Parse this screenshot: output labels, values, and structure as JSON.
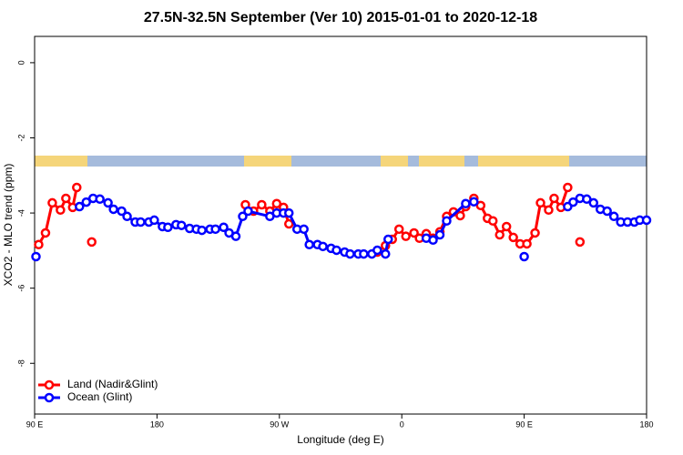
{
  "chart_data": {
    "type": "line",
    "title": "27.5N-32.5N September (Ver 10)   2015-01-01 to 2020-12-18",
    "x_label": "Longitude (deg E)",
    "y_label": "XCO2 - MLO trend (ppm)",
    "xlim": [
      90,
      540
    ],
    "ylim": [
      -9.35,
      0.7
    ],
    "xticks": [
      {
        "value": 90,
        "label": "90 E"
      },
      {
        "value": 180,
        "label": "180"
      },
      {
        "value": 270,
        "label": "90 W"
      },
      {
        "value": 360,
        "label": "0"
      },
      {
        "value": 450,
        "label": "90 E"
      },
      {
        "value": 540,
        "label": "180"
      }
    ],
    "yticks": [
      0,
      -2,
      -4,
      -6,
      -8
    ],
    "legend": "bottom-left",
    "series": [
      {
        "name": "Land (Nadir&Glint)",
        "color": "#ff0000",
        "x": [
          93,
          98,
          103,
          109,
          113,
          118,
          121,
          null,
          132,
          null,
          245,
          251,
          257,
          263,
          268,
          273,
          277,
          null,
          342,
          348,
          353,
          358,
          363,
          369,
          373,
          378,
          383,
          388,
          393,
          398,
          403,
          407,
          413,
          418,
          423,
          427,
          432,
          437,
          442,
          447,
          452,
          458,
          462,
          468,
          472,
          477,
          482,
          null,
          491
        ],
        "values": [
          -4.84,
          -4.53,
          -3.73,
          -3.92,
          -3.61,
          -3.85,
          -3.32,
          null,
          -4.77,
          null,
          -3.78,
          -3.95,
          -3.78,
          -3.95,
          -3.75,
          -3.85,
          -4.29,
          null,
          -5.04,
          -4.87,
          -4.7,
          -4.43,
          -4.62,
          -4.53,
          -4.67,
          -4.55,
          -4.67,
          -4.5,
          -4.09,
          -3.97,
          -4.07,
          -3.83,
          -3.61,
          -3.8,
          -4.14,
          -4.21,
          -4.58,
          -4.36,
          -4.65,
          -4.82,
          -4.82,
          -4.53,
          -3.73,
          -3.92,
          -3.61,
          -3.85,
          -3.32,
          null,
          -4.77
        ]
      },
      {
        "name": "Ocean (Glint)",
        "color": "#0000ff",
        "x": [
          91,
          null,
          123,
          128,
          133,
          138,
          144,
          148,
          154,
          158,
          164,
          168,
          174,
          178,
          184,
          188,
          194,
          198,
          204,
          209,
          213,
          219,
          223,
          229,
          233,
          238,
          243,
          247,
          263,
          268,
          273,
          277,
          283,
          288,
          292,
          298,
          302,
          308,
          312,
          318,
          322,
          328,
          332,
          338,
          342,
          348,
          350,
          null,
          378,
          383,
          388,
          393,
          407,
          413,
          null,
          450,
          null,
          482,
          486,
          491,
          496,
          501,
          506,
          511,
          516,
          521,
          526,
          531,
          535,
          540
        ],
        "values": [
          -5.16,
          null,
          -3.83,
          -3.71,
          -3.61,
          -3.63,
          -3.73,
          -3.9,
          -3.95,
          -4.09,
          -4.24,
          -4.24,
          -4.24,
          -4.19,
          -4.36,
          -4.38,
          -4.31,
          -4.33,
          -4.41,
          -4.43,
          -4.46,
          -4.43,
          -4.43,
          -4.38,
          -4.53,
          -4.62,
          -4.09,
          -3.95,
          -4.09,
          -4.0,
          -4.0,
          -4.0,
          -4.43,
          -4.43,
          -4.84,
          -4.84,
          -4.89,
          -4.94,
          -4.99,
          -5.04,
          -5.09,
          -5.09,
          -5.09,
          -5.09,
          -4.99,
          -5.09,
          -4.7,
          null,
          -4.67,
          -4.72,
          -4.58,
          -4.21,
          -3.75,
          -3.7,
          null,
          -5.16,
          null,
          -3.83,
          -3.71,
          -3.61,
          -3.63,
          -3.73,
          -3.9,
          -3.95,
          -4.09,
          -4.24,
          -4.24,
          -4.24,
          -4.19,
          -4.19
        ]
      }
    ]
  }
}
